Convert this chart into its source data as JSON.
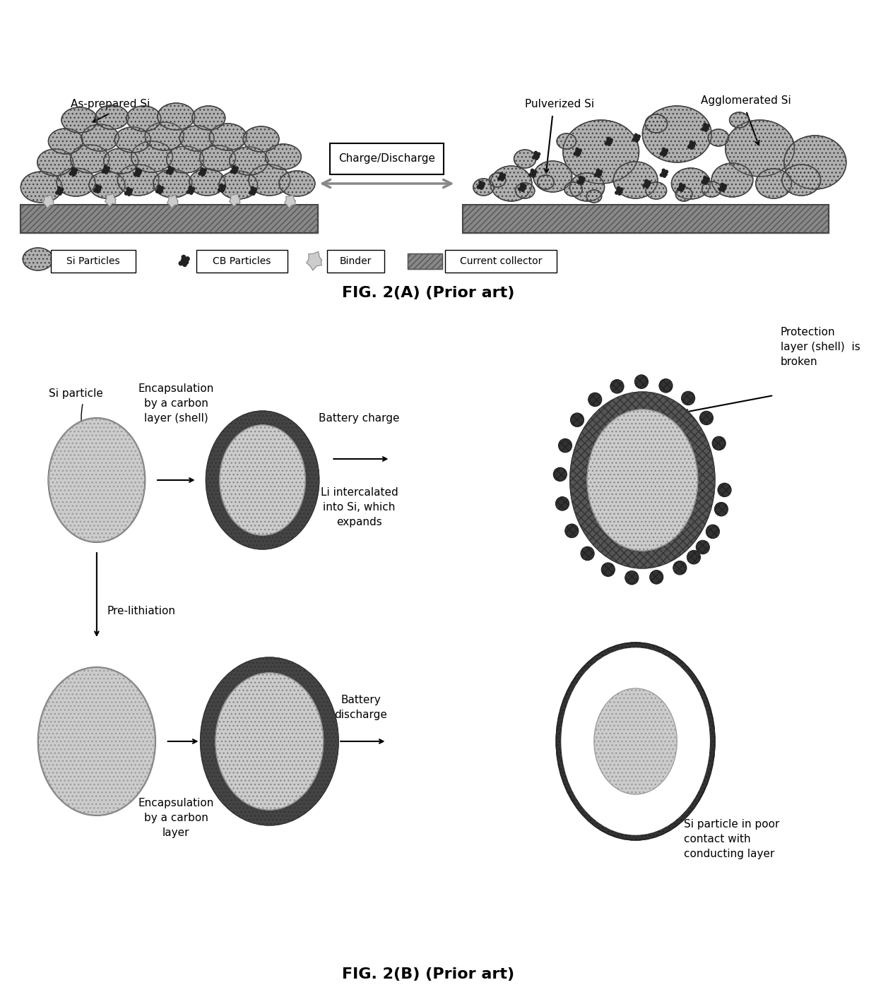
{
  "fig_width": 12.4,
  "fig_height": 14.22,
  "bg_color": "#ffffff",
  "title_2A": "FIG. 2(A) (Prior art)",
  "title_2B": "FIG. 2(B) (Prior art)",
  "title_fontsize": 16,
  "body_fontsize": 11,
  "small_fontsize": 10,
  "label_left_top": "As-prepared Si",
  "label_right_top1": "Pulverized Si",
  "label_right_top2": "Agglomerated Si",
  "charge_discharge_label": "Charge/Discharge",
  "legend_items": [
    "Si Particles",
    "CB Particles",
    "Binder",
    "Current collector"
  ],
  "si_particle_color": "#aaaaaa",
  "cb_particle_color": "#222222",
  "binder_color": "#cccccc",
  "current_collector_color": "#888888",
  "dark_shell_color": "#333333",
  "light_fill_color": "#cccccc",
  "medium_fill_color": "#999999"
}
